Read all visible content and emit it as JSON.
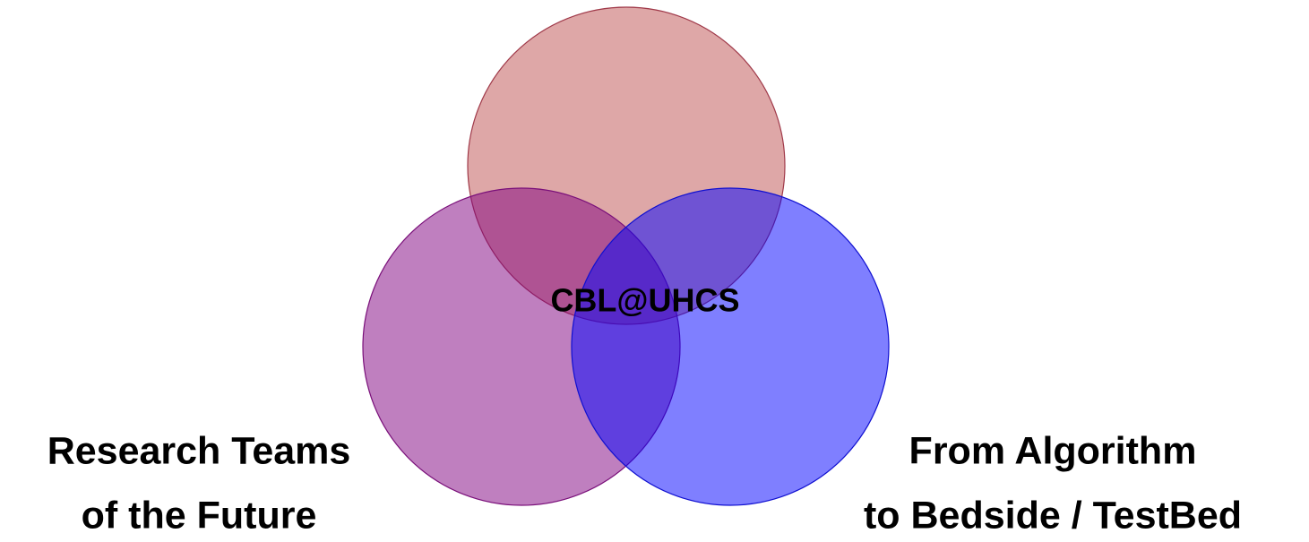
{
  "center_label": "CBL@UHCS",
  "labels": [
    {
      "lines": [
        "Research Teams",
        "of the Future"
      ]
    },
    {
      "lines": [
        "From Algorithm",
        "to Bedside / TestBed"
      ]
    }
  ]
}
